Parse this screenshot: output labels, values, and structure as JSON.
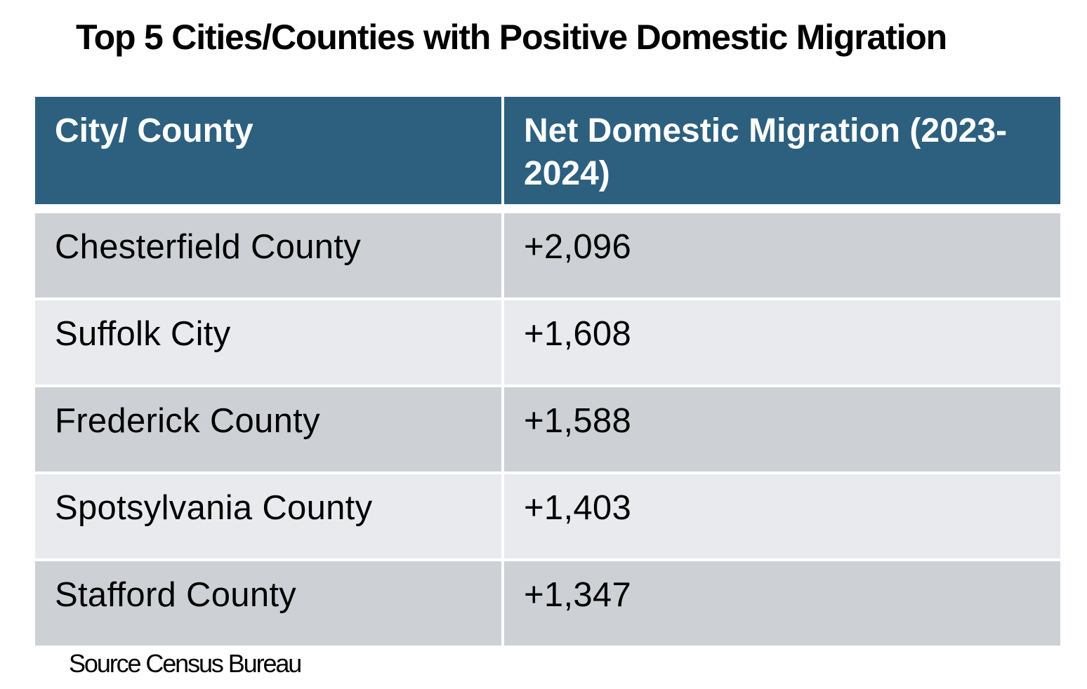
{
  "title": "Top 5 Cities/Counties with Positive Domestic Migration",
  "source_note": "Source Census Bureau",
  "table": {
    "columns": {
      "city_county": "City/ County",
      "net_migration": "Net Domestic Migration (2023-2024)"
    },
    "rows": [
      {
        "city_county": "Chesterfield County",
        "net_migration": "+2,096"
      },
      {
        "city_county": "Suffolk City",
        "net_migration": "+1,608"
      },
      {
        "city_county": "Frederick County",
        "net_migration": "+1,588"
      },
      {
        "city_county": "Spotsylvania County",
        "net_migration": "+1,403"
      },
      {
        "city_county": "Stafford County",
        "net_migration": "+1,347"
      }
    ]
  },
  "colors": {
    "header_bg": "#2C607E",
    "header_text": "#FFFFFF",
    "row_odd_bg": "#CDD1D5",
    "row_even_bg": "#E9EAEE",
    "body_text": "#000000",
    "page_bg": "#FFFFFF"
  },
  "chart_data": {
    "type": "table",
    "title": "Top 5 Cities/Counties with Positive Domestic Migration",
    "columns": [
      "City/ County",
      "Net Domestic Migration (2023-2024)"
    ],
    "rows": [
      [
        "Chesterfield County",
        "+2,096"
      ],
      [
        "Suffolk City",
        "+1,608"
      ],
      [
        "Frederick County",
        "+1,588"
      ],
      [
        "Spotsylvania County",
        "+1,403"
      ],
      [
        "Stafford County",
        "+1,347"
      ]
    ],
    "values": [
      2096,
      1608,
      1588,
      1403,
      1347
    ],
    "source": "Source Census Bureau"
  }
}
